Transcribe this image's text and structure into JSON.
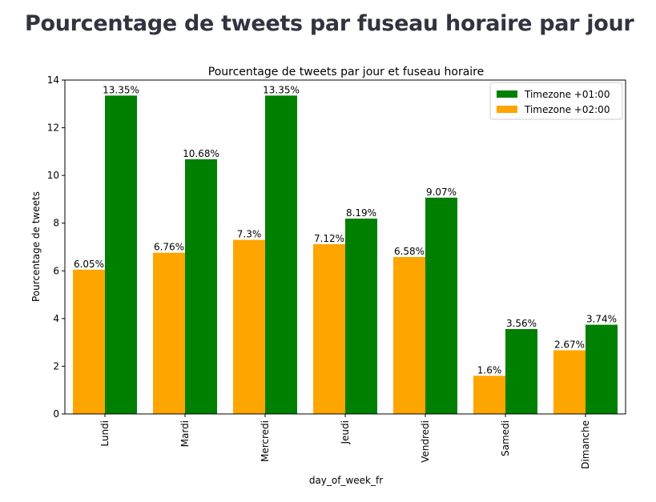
{
  "page": {
    "heading": "Pourcentage de tweets par fuseau horaire par jour"
  },
  "chart_data": {
    "type": "bar",
    "title": "Pourcentage de tweets par jour et fuseau horaire",
    "xlabel": "day_of_week_fr",
    "ylabel": "Pourcentage de tweets",
    "ylim": [
      0,
      14
    ],
    "yticks": [
      0,
      2,
      4,
      6,
      8,
      10,
      12,
      14
    ],
    "categories": [
      "Lundi",
      "Mardi",
      "Mercredi",
      "Jeudi",
      "Vendredi",
      "Samedi",
      "Dimanche"
    ],
    "series": [
      {
        "name": "Timezone +02:00",
        "color": "#ffa500",
        "values": [
          6.05,
          6.76,
          7.3,
          7.12,
          6.58,
          1.6,
          2.67
        ],
        "labels": [
          "6.05%",
          "6.76%",
          "7.3%",
          "7.12%",
          "6.58%",
          "1.6%",
          "2.67%"
        ]
      },
      {
        "name": "Timezone +01:00",
        "color": "#008000",
        "values": [
          13.35,
          10.68,
          13.35,
          8.19,
          9.07,
          3.56,
          3.74
        ],
        "labels": [
          "13.35%",
          "10.68%",
          "13.35%",
          "8.19%",
          "9.07%",
          "3.56%",
          "3.74%"
        ]
      }
    ],
    "legend": {
      "placement": "top-right",
      "order": [
        "Timezone +01:00",
        "Timezone +02:00"
      ]
    },
    "grid": false
  }
}
